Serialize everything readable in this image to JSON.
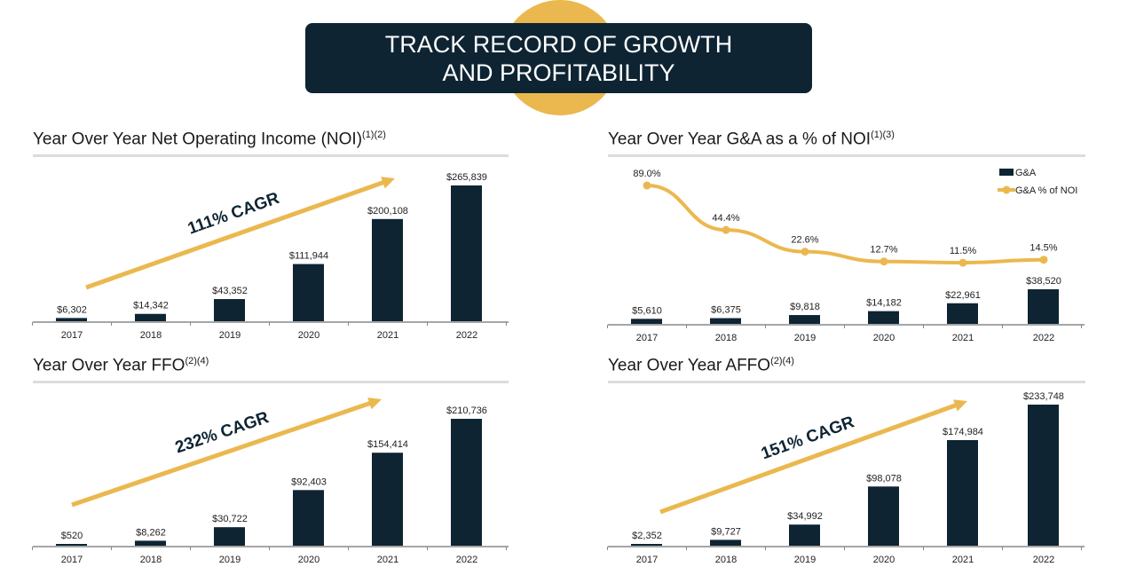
{
  "header": {
    "line1": "TRACK RECORD OF GROWTH",
    "line2": "AND PROFITABILITY"
  },
  "colors": {
    "bar": "#0e2433",
    "accent": "#ebb84f",
    "banner": "#0e2433"
  },
  "chart_data": [
    {
      "type": "bar",
      "title": "Year Over Year Net Operating Income (NOI)",
      "footnote": "(1)(2)",
      "categories": [
        "2017",
        "2018",
        "2019",
        "2020",
        "2021",
        "2022"
      ],
      "values": [
        6302,
        14342,
        43352,
        111944,
        200108,
        265839
      ],
      "labels": [
        "$6,302",
        "$14,342",
        "$43,352",
        "$111,944",
        "$200,108",
        "$265,839"
      ],
      "annotation": "111% CAGR"
    },
    {
      "type": "bar+line",
      "title": "Year Over Year G&A as a % of NOI",
      "footnote": "(1)(3)",
      "categories": [
        "2017",
        "2018",
        "2019",
        "2020",
        "2021",
        "2022"
      ],
      "series": [
        {
          "name": "G&A",
          "type": "bar",
          "values": [
            5610,
            6375,
            9818,
            14182,
            22961,
            38520
          ],
          "labels": [
            "$5,610",
            "$6,375",
            "$9,818",
            "$14,182",
            "$22,961",
            "$38,520"
          ]
        },
        {
          "name": "G&A % of NOI",
          "type": "line",
          "values": [
            89.0,
            44.4,
            22.6,
            12.7,
            11.5,
            14.5
          ],
          "labels": [
            "89.0%",
            "44.4%",
            "22.6%",
            "12.7%",
            "11.5%",
            "14.5%"
          ]
        }
      ],
      "legend": "top-right"
    },
    {
      "type": "bar",
      "title": "Year Over Year FFO",
      "footnote": "(2)(4)",
      "categories": [
        "2017",
        "2018",
        "2019",
        "2020",
        "2021",
        "2022"
      ],
      "values": [
        520,
        8262,
        30722,
        92403,
        154414,
        210736
      ],
      "labels": [
        "$520",
        "$8,262",
        "$30,722",
        "$92,403",
        "$154,414",
        "$210,736"
      ],
      "annotation": "232% CAGR"
    },
    {
      "type": "bar",
      "title": "Year Over Year AFFO",
      "footnote": "(2)(4)",
      "categories": [
        "2017",
        "2018",
        "2019",
        "2020",
        "2021",
        "2022"
      ],
      "values": [
        2352,
        9727,
        34992,
        98078,
        174984,
        233748
      ],
      "labels": [
        "$2,352",
        "$9,727",
        "$34,992",
        "$98,078",
        "$174,984",
        "$233,748"
      ],
      "annotation": "151% CAGR"
    }
  ]
}
